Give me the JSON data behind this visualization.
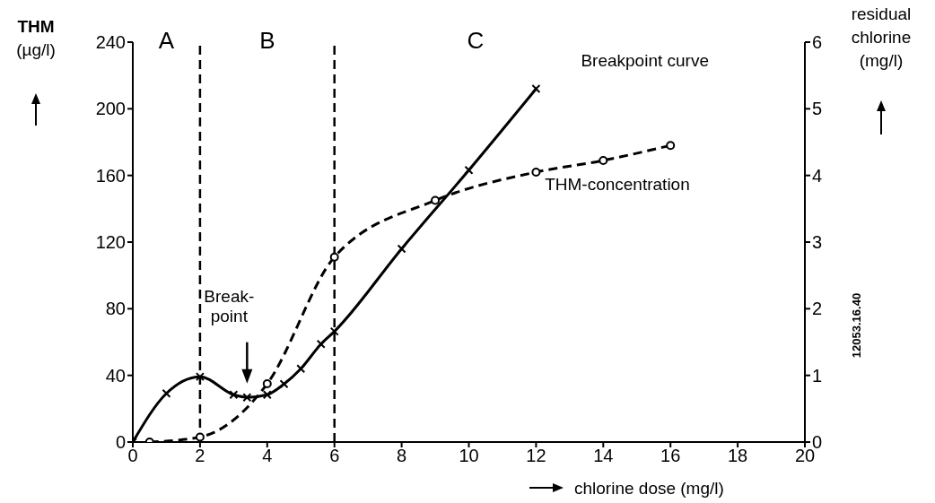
{
  "chart_data": {
    "type": "line",
    "xlabel": "chlorine dose (mg/l)",
    "ylabel": "THM (µg/l)",
    "y2label": "residual chlorine (mg/l)",
    "xlim": [
      0,
      20
    ],
    "xticks": [
      0,
      2,
      4,
      6,
      8,
      10,
      12,
      14,
      16,
      18,
      20
    ],
    "ylim": [
      0,
      240
    ],
    "yticks": [
      0,
      40,
      80,
      120,
      160,
      200,
      240
    ],
    "y2lim": [
      0,
      6
    ],
    "y2ticks": [
      0,
      1,
      2,
      3,
      4,
      5,
      6
    ],
    "series": [
      {
        "name": "Breakpoint curve",
        "color": "#000000",
        "axis": "y2",
        "line_style": "solid",
        "marker": "cross",
        "x": [
          0,
          1,
          2,
          3,
          3.4,
          4,
          4.5,
          5,
          5.6,
          6,
          8,
          10,
          12
        ],
        "values": [
          0,
          0.73,
          0.98,
          0.71,
          0.67,
          0.71,
          0.87,
          1.1,
          1.47,
          1.66,
          2.9,
          4.08,
          5.3
        ]
      },
      {
        "name": "THM-concentration",
        "color": "#000000",
        "axis": "y",
        "line_style": "dashed",
        "marker": "circle",
        "x": [
          0.5,
          2,
          4,
          6,
          9,
          12,
          14,
          16
        ],
        "values": [
          0,
          3,
          35,
          111,
          145,
          162,
          169,
          178
        ]
      }
    ],
    "ref_lines": [
      {
        "axis": "x",
        "value": 2,
        "line_style": "dashed",
        "color": "#000000"
      },
      {
        "axis": "x",
        "value": 6,
        "line_style": "dashed",
        "color": "#000000"
      }
    ],
    "annotations": [
      "A",
      "B",
      "C",
      "Break-\npoint",
      "12053.16.40"
    ]
  }
}
